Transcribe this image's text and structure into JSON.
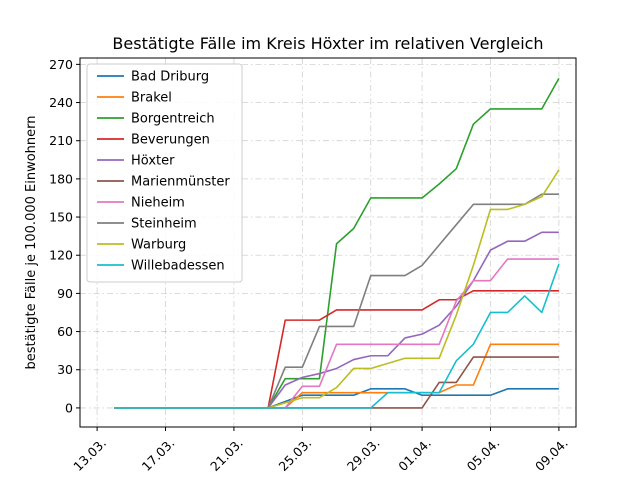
{
  "chart_data": {
    "type": "line",
    "title": "Bestätigte Fälle im Kreis Höxter im relativen Vergleich",
    "xlabel": "",
    "ylabel": "bestätigte Fälle je 100.000 Einwohnern",
    "ylim": [
      -15,
      275
    ],
    "xlim": [
      "2020-03-12",
      "2020-04-10"
    ],
    "yticks": [
      0,
      30,
      60,
      90,
      120,
      150,
      180,
      210,
      240,
      270
    ],
    "xtick_labels": [
      {
        "date": "2020-03-13",
        "label": "13.03."
      },
      {
        "date": "2020-03-17",
        "label": "17.03."
      },
      {
        "date": "2020-03-21",
        "label": "21.03."
      },
      {
        "date": "2020-03-25",
        "label": "25.03."
      },
      {
        "date": "2020-03-29",
        "label": "29.03."
      },
      {
        "date": "2020-04-01",
        "label": "01.04."
      },
      {
        "date": "2020-04-05",
        "label": "05.04."
      },
      {
        "date": "2020-04-09",
        "label": "09.04."
      }
    ],
    "grid": true,
    "legend_position": "top-left",
    "series": [
      {
        "name": "Bad Driburg",
        "color": "#1f77b4",
        "x": [
          "2020-03-14",
          "2020-03-23",
          "2020-03-24",
          "2020-03-25",
          "2020-03-26",
          "2020-03-27",
          "2020-03-28",
          "2020-03-29",
          "2020-03-30",
          "2020-03-31",
          "2020-04-01",
          "2020-04-02",
          "2020-04-03",
          "2020-04-04",
          "2020-04-05",
          "2020-04-06",
          "2020-04-07",
          "2020-04-08",
          "2020-04-09"
        ],
        "values": [
          0,
          0,
          5,
          10,
          10,
          10,
          10,
          15,
          15,
          15,
          10,
          10,
          10,
          10,
          10,
          15,
          15,
          15,
          15
        ]
      },
      {
        "name": "Brakel",
        "color": "#ff7f0e",
        "x": [
          "2020-03-14",
          "2020-03-23",
          "2020-03-24",
          "2020-03-25",
          "2020-03-26",
          "2020-03-27",
          "2020-03-28",
          "2020-03-29",
          "2020-03-30",
          "2020-03-31",
          "2020-04-01",
          "2020-04-02",
          "2020-04-03",
          "2020-04-04",
          "2020-04-05",
          "2020-04-06",
          "2020-04-07",
          "2020-04-08",
          "2020-04-09"
        ],
        "values": [
          0,
          0,
          0,
          12,
          12,
          12,
          12,
          12,
          12,
          12,
          12,
          12,
          18,
          18,
          50,
          50,
          50,
          50,
          50
        ]
      },
      {
        "name": "Borgentreich",
        "color": "#2ca02c",
        "x": [
          "2020-03-14",
          "2020-03-23",
          "2020-03-24",
          "2020-03-25",
          "2020-03-26",
          "2020-03-27",
          "2020-03-28",
          "2020-03-29",
          "2020-03-30",
          "2020-03-31",
          "2020-04-01",
          "2020-04-02",
          "2020-04-03",
          "2020-04-04",
          "2020-04-05",
          "2020-04-06",
          "2020-04-07",
          "2020-04-08",
          "2020-04-09"
        ],
        "values": [
          0,
          0,
          23,
          23,
          23,
          129,
          141,
          165,
          165,
          165,
          165,
          176,
          188,
          223,
          235,
          235,
          235,
          235,
          259
        ]
      },
      {
        "name": "Beverungen",
        "color": "#d62728",
        "x": [
          "2020-03-14",
          "2020-03-23",
          "2020-03-24",
          "2020-03-25",
          "2020-03-26",
          "2020-03-27",
          "2020-03-28",
          "2020-03-29",
          "2020-03-30",
          "2020-03-31",
          "2020-04-01",
          "2020-04-02",
          "2020-04-03",
          "2020-04-04",
          "2020-04-05",
          "2020-04-06",
          "2020-04-07",
          "2020-04-08",
          "2020-04-09"
        ],
        "values": [
          0,
          0,
          69,
          69,
          69,
          77,
          77,
          77,
          77,
          77,
          77,
          85,
          85,
          92,
          92,
          92,
          92,
          92,
          92
        ]
      },
      {
        "name": "Höxter",
        "color": "#9467bd",
        "x": [
          "2020-03-14",
          "2020-03-23",
          "2020-03-24",
          "2020-03-25",
          "2020-03-26",
          "2020-03-27",
          "2020-03-28",
          "2020-03-29",
          "2020-03-30",
          "2020-03-31",
          "2020-04-01",
          "2020-04-02",
          "2020-04-03",
          "2020-04-04",
          "2020-04-05",
          "2020-04-06",
          "2020-04-07",
          "2020-04-08",
          "2020-04-09"
        ],
        "values": [
          0,
          0,
          18,
          24,
          27,
          31,
          38,
          41,
          41,
          55,
          58,
          65,
          80,
          100,
          124,
          131,
          131,
          138,
          138
        ]
      },
      {
        "name": "Marienmünster",
        "color": "#8c564b",
        "x": [
          "2020-03-14",
          "2020-03-23",
          "2020-03-24",
          "2020-03-25",
          "2020-03-26",
          "2020-03-27",
          "2020-03-28",
          "2020-03-29",
          "2020-03-30",
          "2020-03-31",
          "2020-04-01",
          "2020-04-02",
          "2020-04-03",
          "2020-04-04",
          "2020-04-05",
          "2020-04-06",
          "2020-04-07",
          "2020-04-08",
          "2020-04-09"
        ],
        "values": [
          0,
          0,
          0,
          0,
          0,
          0,
          0,
          0,
          0,
          0,
          0,
          20,
          20,
          40,
          40,
          40,
          40,
          40,
          40
        ]
      },
      {
        "name": "Nieheim",
        "color": "#e377c2",
        "x": [
          "2020-03-14",
          "2020-03-23",
          "2020-03-24",
          "2020-03-25",
          "2020-03-26",
          "2020-03-27",
          "2020-03-28",
          "2020-03-29",
          "2020-03-30",
          "2020-03-31",
          "2020-04-01",
          "2020-04-02",
          "2020-04-03",
          "2020-04-04",
          "2020-04-05",
          "2020-04-06",
          "2020-04-07",
          "2020-04-08",
          "2020-04-09"
        ],
        "values": [
          0,
          0,
          0,
          17,
          17,
          50,
          50,
          50,
          50,
          50,
          50,
          50,
          84,
          100,
          100,
          117,
          117,
          117,
          117
        ]
      },
      {
        "name": "Steinheim",
        "color": "#7f7f7f",
        "x": [
          "2020-03-14",
          "2020-03-23",
          "2020-03-24",
          "2020-03-25",
          "2020-03-26",
          "2020-03-27",
          "2020-03-28",
          "2020-03-29",
          "2020-03-30",
          "2020-03-31",
          "2020-04-01",
          "2020-04-02",
          "2020-04-03",
          "2020-04-04",
          "2020-04-05",
          "2020-04-06",
          "2020-04-07",
          "2020-04-08",
          "2020-04-09"
        ],
        "values": [
          0,
          0,
          32,
          32,
          64,
          64,
          64,
          104,
          104,
          104,
          112,
          128,
          144,
          160,
          160,
          160,
          160,
          168,
          168
        ]
      },
      {
        "name": "Warburg",
        "color": "#bcbd22",
        "x": [
          "2020-03-14",
          "2020-03-23",
          "2020-03-24",
          "2020-03-25",
          "2020-03-26",
          "2020-03-27",
          "2020-03-28",
          "2020-03-29",
          "2020-03-30",
          "2020-03-31",
          "2020-04-01",
          "2020-04-02",
          "2020-04-03",
          "2020-04-04",
          "2020-04-05",
          "2020-04-06",
          "2020-04-07",
          "2020-04-08",
          "2020-04-09"
        ],
        "values": [
          0,
          0,
          4,
          8,
          8,
          16,
          31,
          31,
          35,
          39,
          39,
          39,
          73,
          112,
          156,
          156,
          160,
          166,
          187
        ]
      },
      {
        "name": "Willebadessen",
        "color": "#17becf",
        "x": [
          "2020-03-14",
          "2020-03-23",
          "2020-03-24",
          "2020-03-25",
          "2020-03-26",
          "2020-03-27",
          "2020-03-28",
          "2020-03-29",
          "2020-03-30",
          "2020-03-31",
          "2020-04-01",
          "2020-04-02",
          "2020-04-03",
          "2020-04-04",
          "2020-04-05",
          "2020-04-06",
          "2020-04-07",
          "2020-04-08",
          "2020-04-09"
        ],
        "values": [
          0,
          0,
          0,
          0,
          0,
          0,
          0,
          0,
          12,
          12,
          12,
          12,
          37,
          50,
          75,
          75,
          88,
          75,
          113
        ]
      }
    ]
  }
}
